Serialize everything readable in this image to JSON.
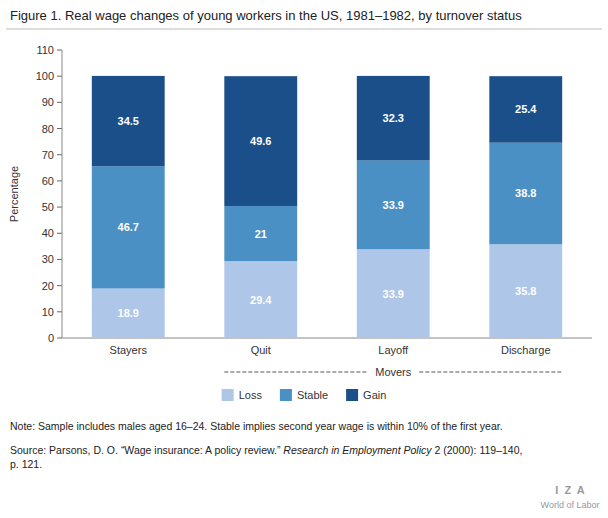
{
  "chart_data": {
    "type": "bar",
    "title": "Figure 1. Real wage changes of young workers in the US, 1981–1982, by turnover status",
    "categories": [
      "Stayers",
      "Quit",
      "Layoff",
      "Discharge"
    ],
    "series": [
      {
        "name": "Loss",
        "color": "#aec6e8",
        "values": [
          18.9,
          29.4,
          33.9,
          35.8
        ]
      },
      {
        "name": "Stable",
        "color": "#4a90c4",
        "values": [
          46.7,
          21.0,
          33.9,
          38.8
        ]
      },
      {
        "name": "Gain",
        "color": "#1a4f8a",
        "values": [
          34.5,
          49.6,
          32.3,
          25.4
        ]
      }
    ],
    "stacked": true,
    "data_labels": true,
    "ylabel": "Percentage",
    "ylim": [
      0,
      110
    ],
    "yticks": [
      0,
      10,
      20,
      30,
      40,
      50,
      60,
      70,
      80,
      90,
      100,
      110
    ],
    "grid": false,
    "legend": "bottom",
    "annotations": [
      "Movers",
      "I  Z  A",
      "World of Labor"
    ],
    "note": "Note: Sample includes males aged 16–24. Stable implies second year wage is within 10% of the first year.",
    "source": [
      "Source: Parsons, D. O. “Wage insurance: A policy review.” ",
      "Research in Employment Policy",
      " 2 (2000): 119–140,\np. 121."
    ]
  }
}
